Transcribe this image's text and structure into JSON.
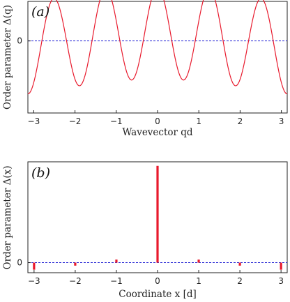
{
  "chart_data": [
    {
      "type": "line",
      "panel_label": "(a)",
      "xlabel": "Wavevector qd",
      "ylabel": "Order parameter Δ(q)",
      "xlim": [
        -3.14159,
        3.14159
      ],
      "x_ticks": [
        -3,
        -2,
        -1,
        0,
        1,
        2,
        3
      ],
      "x_tick_labels": [
        "−3",
        "−2",
        "−1",
        "0",
        "1",
        "2",
        "3"
      ],
      "y_ticks": [
        0
      ],
      "y_tick_labels": [
        "0"
      ],
      "ylim": [
        -1.55,
        0.85
      ],
      "reference_line": {
        "y": 0,
        "style": "dashed",
        "color": "#2b2bd6"
      },
      "series": [
        {
          "color": "#e8192c",
          "function": {
            "kind": "cosine_sum",
            "a0": 0.05,
            "a1": 0.15,
            "a2": -0.04,
            "a5": 1.0
          },
          "sample_count": 400
        }
      ],
      "grid": false
    },
    {
      "type": "bar",
      "panel_label": "(b)",
      "xlabel": "Coordinate x [d]",
      "ylabel": "Order parameter Δ(x)",
      "xlim": [
        -3.15,
        3.15
      ],
      "ylim": [
        -0.1,
        1.0
      ],
      "x_ticks": [
        -3,
        -2,
        -1,
        0,
        1,
        2,
        3
      ],
      "x_tick_labels": [
        "−3",
        "−2",
        "−1",
        "0",
        "1",
        "2",
        "3"
      ],
      "y_ticks": [
        0
      ],
      "y_tick_labels": [
        "0"
      ],
      "reference_line": {
        "y": 0,
        "style": "dashed",
        "color": "#2b2bd6"
      },
      "bar_color": "#e8192c",
      "x": [
        -3,
        -2,
        -1,
        0,
        1,
        2,
        3
      ],
      "values": [
        -0.07,
        -0.03,
        0.03,
        0.96,
        0.03,
        -0.03,
        -0.07
      ],
      "grid": false
    }
  ]
}
